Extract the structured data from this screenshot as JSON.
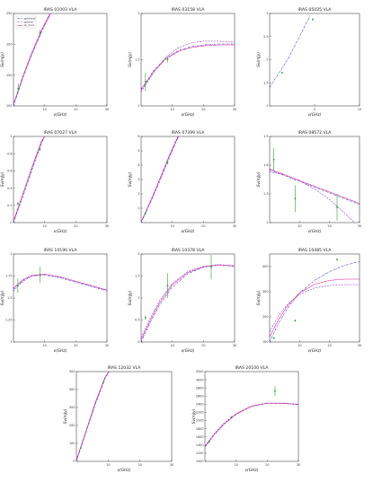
{
  "legend": {
    "placement": "top-left",
    "entries": [
      {
        "label": "spheroid",
        "color": "#1f1fd0",
        "style": "dash-dot"
      },
      {
        "label": "sphere",
        "color": "#8a2be2",
        "style": "dashed"
      },
      {
        "label": "pt_mod",
        "color": "#e0208f",
        "style": "solid"
      }
    ]
  },
  "chart_data": [
    {
      "type": "line",
      "title": "IRAS 01003 VLA",
      "xlabel": "ν(GHz)",
      "ylabel": "Sν(mJy)",
      "xlim": [
        0,
        30
      ],
      "ylim": [
        100,
        250
      ],
      "xticks": [
        10,
        20,
        30
      ],
      "yticks": [
        100,
        150,
        200,
        250
      ],
      "series": [
        {
          "name": "spheroid",
          "x": [
            0,
            3,
            6,
            9,
            12
          ],
          "y": [
            100,
            145,
            185,
            220,
            252
          ]
        },
        {
          "name": "sphere",
          "x": [
            0,
            3,
            6,
            9,
            12
          ],
          "y": [
            102,
            147,
            186,
            221,
            250
          ]
        },
        {
          "name": "pt_mod",
          "x": [
            0,
            3,
            6,
            9,
            12
          ],
          "y": [
            103,
            148,
            188,
            223,
            253
          ]
        }
      ],
      "points": [
        {
          "x": 1.5,
          "y": 128,
          "err": 8
        },
        {
          "x": 8.5,
          "y": 218,
          "err": 6
        }
      ],
      "show_legend": true
    },
    {
      "type": "line",
      "title": "IRAS 03158 VLA",
      "xlabel": "ν(GHz)",
      "ylabel": "Sν(mJy)",
      "xlim": [
        0,
        30
      ],
      "ylim": [
        1.0,
        2.0
      ],
      "xticks": [
        10,
        20,
        30
      ],
      "yticks": [
        1.0,
        1.5,
        2.0
      ],
      "series": [
        {
          "name": "spheroid",
          "x": [
            0,
            4,
            8,
            12,
            16,
            20,
            25,
            30
          ],
          "y": [
            1.18,
            1.38,
            1.52,
            1.6,
            1.64,
            1.66,
            1.67,
            1.67
          ]
        },
        {
          "name": "sphere",
          "x": [
            0,
            4,
            8,
            12,
            16,
            20,
            25,
            30
          ],
          "y": [
            1.15,
            1.36,
            1.53,
            1.63,
            1.68,
            1.7,
            1.7,
            1.69
          ]
        },
        {
          "name": "pt_mod",
          "x": [
            0,
            4,
            8,
            12,
            16,
            20,
            25,
            30
          ],
          "y": [
            1.17,
            1.37,
            1.51,
            1.59,
            1.63,
            1.65,
            1.66,
            1.66
          ]
        }
      ],
      "points": [
        {
          "x": 1.4,
          "y": 1.26,
          "err": 0.1
        },
        {
          "x": 8.5,
          "y": 1.5,
          "err": 0.03
        }
      ]
    },
    {
      "type": "line",
      "title": "IRAS 05025 VLA",
      "xlabel": "ν(GHz)",
      "ylabel": "Sν(mJy)",
      "xlim": [
        0,
        10
      ],
      "ylim": [
        1.0,
        3.0
      ],
      "xticks": [
        5,
        10
      ],
      "yticks": [
        1.0,
        1.5,
        2.0,
        2.5,
        3.0
      ],
      "series": [
        {
          "name": "spheroid",
          "x": [
            0,
            2,
            4.5
          ],
          "y": [
            1.4,
            2.0,
            2.95
          ]
        }
      ],
      "points": [
        {
          "x": 1.4,
          "y": 1.72,
          "err": 0.02
        },
        {
          "x": 4.8,
          "y": 2.87,
          "err": 0.02
        }
      ]
    },
    {
      "type": "line",
      "title": "IRAS 07027 VLA",
      "xlabel": "ν(GHz)",
      "ylabel": "Sν(mJy)",
      "xlim": [
        0,
        30
      ],
      "ylim": [
        0.0,
        1.0
      ],
      "xticks": [
        10,
        20,
        30
      ],
      "yticks": [
        0.0,
        0.2,
        0.4,
        0.6,
        0.8,
        1.0
      ],
      "series": [
        {
          "name": "spheroid",
          "x": [
            0,
            3,
            6,
            9,
            10
          ],
          "y": [
            0.0,
            0.3,
            0.62,
            0.92,
            1.0
          ]
        },
        {
          "name": "sphere",
          "x": [
            0,
            3,
            6,
            9,
            10
          ],
          "y": [
            0.01,
            0.32,
            0.64,
            0.93,
            1.0
          ]
        },
        {
          "name": "pt_mod",
          "x": [
            0,
            3,
            6,
            9,
            10
          ],
          "y": [
            0.02,
            0.33,
            0.65,
            0.95,
            1.0
          ]
        }
      ],
      "points": [
        {
          "x": 1.4,
          "y": 0.22,
          "err": 0.02
        },
        {
          "x": 8.5,
          "y": 0.85,
          "err": 0.02
        }
      ]
    },
    {
      "type": "line",
      "title": "IRAS 07399 VLA",
      "xlabel": "ν(GHz)",
      "ylabel": "Sν(mJy)",
      "xlim": [
        0,
        30
      ],
      "ylim": [
        0,
        6
      ],
      "xticks": [
        10,
        20,
        30
      ],
      "yticks": [
        1,
        2,
        3,
        4,
        5,
        6
      ],
      "series": [
        {
          "name": "spheroid",
          "x": [
            0,
            3,
            6,
            9,
            12
          ],
          "y": [
            0.0,
            1.4,
            2.9,
            4.5,
            6.0
          ]
        },
        {
          "name": "sphere",
          "x": [
            0,
            3,
            6,
            9,
            12
          ],
          "y": [
            0.0,
            1.45,
            3.0,
            4.6,
            6.0
          ]
        },
        {
          "name": "pt_mod",
          "x": [
            0,
            3,
            6,
            9,
            12
          ],
          "y": [
            0.05,
            1.5,
            3.05,
            4.65,
            6.1
          ]
        }
      ],
      "points": [
        {
          "x": 1.4,
          "y": 0.65,
          "err": 0.1
        },
        {
          "x": 8.5,
          "y": 4.2,
          "err": 0.15
        }
      ]
    },
    {
      "type": "line",
      "title": "IRAS 08572 VLA",
      "xlabel": "ν(GHz)",
      "ylabel": "Sν(mJy)",
      "xlim": [
        0,
        30
      ],
      "ylim": [
        1.0,
        1.9
      ],
      "xticks": [
        10,
        20,
        30
      ],
      "yticks": [
        1.0,
        1.3,
        1.6,
        1.9
      ],
      "series": [
        {
          "name": "spheroid",
          "x": [
            0,
            5,
            10,
            15,
            20,
            25,
            30
          ],
          "y": [
            1.55,
            1.49,
            1.43,
            1.37,
            1.31,
            1.25,
            1.19
          ]
        },
        {
          "name": "sphere",
          "x": [
            0,
            5,
            10,
            15,
            20,
            25,
            30
          ],
          "y": [
            1.53,
            1.5,
            1.44,
            1.35,
            1.24,
            1.1,
            0.95
          ]
        },
        {
          "name": "pt_mod",
          "x": [
            0,
            5,
            10,
            15,
            20,
            25,
            30
          ],
          "y": [
            1.56,
            1.5,
            1.44,
            1.38,
            1.32,
            1.26,
            1.2
          ]
        }
      ],
      "points": [
        {
          "x": 1.4,
          "y": 1.66,
          "err": 0.12
        },
        {
          "x": 8.5,
          "y": 1.25,
          "err": 0.14
        },
        {
          "x": 22.5,
          "y": 1.16,
          "err": 0.14
        }
      ]
    },
    {
      "type": "line",
      "title": "IRAS 10190 VLA",
      "xlabel": "ν(GHz)",
      "ylabel": "Sν(mJy)",
      "xlim": [
        0,
        30
      ],
      "ylim": [
        1.0,
        2.0
      ],
      "xticks": [
        10,
        20,
        30
      ],
      "yticks": [
        1.0,
        1.25,
        1.5,
        1.75,
        2.0
      ],
      "series": [
        {
          "name": "spheroid",
          "x": [
            0,
            3,
            6,
            10,
            15,
            20,
            25,
            30
          ],
          "y": [
            1.6,
            1.7,
            1.75,
            1.76,
            1.73,
            1.68,
            1.63,
            1.58
          ]
        },
        {
          "name": "sphere",
          "x": [
            0,
            3,
            6,
            10,
            15,
            20,
            25,
            30
          ],
          "y": [
            1.58,
            1.69,
            1.75,
            1.77,
            1.74,
            1.69,
            1.64,
            1.59
          ]
        },
        {
          "name": "pt_mod",
          "x": [
            0,
            3,
            6,
            10,
            15,
            20,
            25,
            30
          ],
          "y": [
            1.61,
            1.71,
            1.76,
            1.77,
            1.74,
            1.69,
            1.64,
            1.59
          ]
        }
      ],
      "points": [
        {
          "x": 1.4,
          "y": 1.64,
          "err": 0.08
        },
        {
          "x": 8.5,
          "y": 1.76,
          "err": 0.09
        }
      ]
    },
    {
      "type": "line",
      "title": "IRAS 10378 VLA",
      "xlabel": "ν(GHz)",
      "ylabel": "Sν(mJy)",
      "xlim": [
        0,
        30
      ],
      "ylim": [
        0.0,
        2.0
      ],
      "xticks": [
        10,
        20,
        30
      ],
      "yticks": [
        0.0,
        0.5,
        1.0,
        1.5,
        2.0
      ],
      "series": [
        {
          "name": "spheroid",
          "x": [
            0,
            3,
            6,
            10,
            15,
            20,
            25,
            30
          ],
          "y": [
            0.0,
            0.45,
            0.85,
            1.25,
            1.55,
            1.7,
            1.75,
            1.72
          ]
        },
        {
          "name": "sphere",
          "x": [
            0,
            3,
            6,
            10,
            15,
            20,
            25,
            30
          ],
          "y": [
            0.1,
            0.55,
            0.95,
            1.33,
            1.6,
            1.72,
            1.76,
            1.73
          ]
        },
        {
          "name": "pt_mod",
          "x": [
            0,
            3,
            6,
            10,
            15,
            20,
            25,
            30
          ],
          "y": [
            0.05,
            0.5,
            0.9,
            1.3,
            1.58,
            1.71,
            1.75,
            1.73
          ]
        }
      ],
      "points": [
        {
          "x": 1.4,
          "y": 0.55,
          "err": 0.05
        },
        {
          "x": 8.5,
          "y": 1.28,
          "err": 0.28
        },
        {
          "x": 22.5,
          "y": 1.7,
          "err": 0.28
        }
      ]
    },
    {
      "type": "line",
      "title": "IRAS 10485 VLA",
      "xlabel": "ν(GHz)",
      "ylabel": "Sν(mJy)",
      "xlim": [
        0,
        30
      ],
      "ylim": [
        100,
        450
      ],
      "xticks": [
        10,
        20,
        30
      ],
      "yticks": [
        100,
        200,
        300,
        400
      ],
      "series": [
        {
          "name": "spheroid",
          "x": [
            0,
            3,
            6,
            10,
            15,
            20,
            25,
            30
          ],
          "y": [
            100,
            175,
            235,
            295,
            345,
            380,
            405,
            420
          ]
        },
        {
          "name": "sphere",
          "x": [
            0,
            3,
            6,
            10,
            15,
            20,
            25,
            30
          ],
          "y": [
            140,
            205,
            250,
            290,
            315,
            325,
            328,
            328
          ]
        },
        {
          "name": "pt_mod",
          "x": [
            0,
            3,
            6,
            10,
            15,
            20,
            25,
            30
          ],
          "y": [
            120,
            190,
            245,
            295,
            330,
            345,
            350,
            350
          ]
        }
      ],
      "points": [
        {
          "x": 1.4,
          "y": 115,
          "err": 4
        },
        {
          "x": 8.5,
          "y": 185,
          "err": 4
        },
        {
          "x": 22.5,
          "y": 428,
          "err": 4
        }
      ]
    },
    {
      "type": "line",
      "title": "IRAS 12032 VLA",
      "xlabel": "ν(GHz)",
      "ylabel": "Sν(mJy)",
      "xlim": [
        0,
        30
      ],
      "ylim": [
        0,
        500
      ],
      "xticks": [
        10,
        20,
        30
      ],
      "yticks": [
        0,
        100,
        200,
        300,
        400,
        500
      ],
      "series": [
        {
          "name": "spheroid",
          "x": [
            0,
            3,
            6,
            9,
            11
          ],
          "y": [
            0,
            160,
            320,
            460,
            520
          ]
        },
        {
          "name": "sphere",
          "x": [
            0,
            3,
            6,
            9,
            11
          ],
          "y": [
            5,
            165,
            325,
            465,
            520
          ]
        },
        {
          "name": "pt_mod",
          "x": [
            0,
            3,
            6,
            9,
            11
          ],
          "y": [
            8,
            168,
            330,
            468,
            522
          ]
        }
      ],
      "points": [
        {
          "x": 1.4,
          "y": 75,
          "err": 5
        },
        {
          "x": 8.5,
          "y": 440,
          "err": 5
        }
      ]
    },
    {
      "type": "line",
      "title": "IRAS 20100 VLA",
      "xlabel": "ν(GHz)",
      "ylabel": "Sν(mJy)",
      "xlim": [
        0,
        30
      ],
      "ylim": [
        1000,
        3200
      ],
      "xticks": [
        10,
        20,
        30
      ],
      "yticks": [
        1000,
        1200,
        1400,
        1600,
        1800,
        2000,
        2200,
        2400,
        2600,
        2800,
        3000,
        3200
      ],
      "series": [
        {
          "name": "spheroid",
          "x": [
            0,
            3,
            6,
            10,
            15,
            20,
            25,
            30
          ],
          "y": [
            1350,
            1650,
            1900,
            2150,
            2350,
            2420,
            2420,
            2390
          ]
        },
        {
          "name": "sphere",
          "x": [
            0,
            3,
            6,
            10,
            15,
            20,
            25,
            30
          ],
          "y": [
            1380,
            1680,
            1930,
            2170,
            2360,
            2430,
            2430,
            2400
          ]
        },
        {
          "name": "pt_mod",
          "x": [
            0,
            3,
            6,
            10,
            15,
            20,
            25,
            30
          ],
          "y": [
            1360,
            1660,
            1910,
            2160,
            2350,
            2425,
            2425,
            2395
          ]
        }
      ],
      "points": [
        {
          "x": 1.4,
          "y": 1480,
          "err": 30
        },
        {
          "x": 8.5,
          "y": 2080,
          "err": 30
        },
        {
          "x": 22.5,
          "y": 2720,
          "err": 120
        }
      ]
    }
  ],
  "colors": {
    "spheroid": "#1f1fd0",
    "sphere": "#8a2be2",
    "pt_mod": "#e0208f",
    "data": "#2ca02c"
  }
}
